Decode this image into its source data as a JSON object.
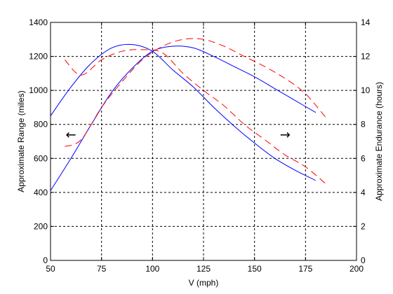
{
  "chart_data": {
    "type": "line",
    "title": "",
    "xlabel": "V (mph)",
    "ylabel": "Approximate Range (miles)",
    "y2label": "Approximate Endurance (hours)",
    "xlim": [
      50,
      200
    ],
    "ylim": [
      0,
      1400
    ],
    "y2lim": [
      0,
      14
    ],
    "xticks": [
      "50",
      "75",
      "100",
      "125",
      "150",
      "175",
      "200"
    ],
    "yticks": [
      "0",
      "200",
      "400",
      "600",
      "800",
      "1000",
      "1200",
      "1400"
    ],
    "y2ticks": [
      "0",
      "2",
      "4",
      "6",
      "8",
      "10",
      "12",
      "14"
    ],
    "grid": true,
    "annotations": [
      {
        "symbol": "←",
        "x": 60,
        "y": 740
      },
      {
        "symbol": "→",
        "x": 165,
        "y": 740
      }
    ],
    "series": [
      {
        "axis": "left",
        "color": "#0000ff",
        "style": "solid",
        "x": [
          50,
          60,
          70,
          80,
          90,
          100,
          110,
          120,
          130,
          140,
          150,
          160,
          170,
          180
        ],
        "y": [
          410,
          600,
          800,
          990,
          1130,
          1230,
          1260,
          1250,
          1200,
          1140,
          1080,
          1010,
          940,
          870
        ]
      },
      {
        "axis": "right",
        "color": "#0000ff",
        "style": "solid",
        "x": [
          50,
          60,
          70,
          80,
          90,
          100,
          110,
          120,
          130,
          140,
          150,
          160,
          170,
          180
        ],
        "y": [
          8.5,
          10.2,
          11.6,
          12.5,
          12.7,
          12.3,
          11.2,
          10.2,
          9.0,
          7.9,
          6.9,
          6.0,
          5.3,
          4.7
        ]
      },
      {
        "axis": "left",
        "color": "#ff0000",
        "style": "dashed",
        "x": [
          57,
          65,
          75,
          85,
          95,
          105,
          115,
          125,
          135,
          145,
          155,
          165,
          175,
          185
        ],
        "y": [
          670,
          710,
          900,
          1050,
          1180,
          1260,
          1300,
          1300,
          1260,
          1200,
          1140,
          1070,
          980,
          840
        ]
      },
      {
        "axis": "right",
        "color": "#ff0000",
        "style": "dashed",
        "x": [
          57,
          65,
          75,
          85,
          95,
          105,
          115,
          125,
          135,
          145,
          155,
          165,
          175,
          185
        ],
        "y": [
          11.8,
          10.9,
          11.8,
          12.3,
          12.4,
          12.2,
          11.0,
          10.0,
          9.1,
          8.0,
          7.1,
          6.2,
          5.5,
          4.5
        ]
      }
    ]
  }
}
